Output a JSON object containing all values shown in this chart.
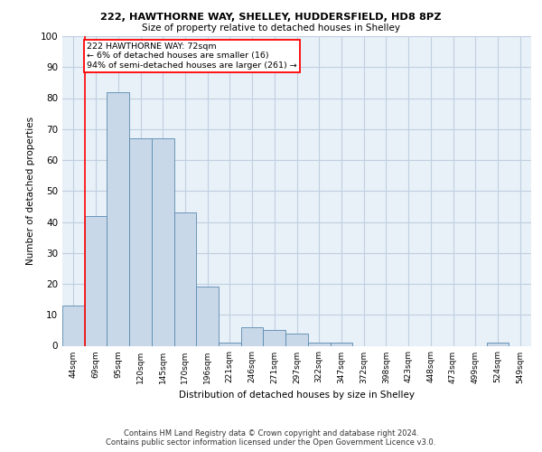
{
  "title1": "222, HAWTHORNE WAY, SHELLEY, HUDDERSFIELD, HD8 8PZ",
  "title2": "Size of property relative to detached houses in Shelley",
  "xlabel": "Distribution of detached houses by size in Shelley",
  "ylabel": "Number of detached properties",
  "bin_labels": [
    "44sqm",
    "69sqm",
    "95sqm",
    "120sqm",
    "145sqm",
    "170sqm",
    "196sqm",
    "221sqm",
    "246sqm",
    "271sqm",
    "297sqm",
    "322sqm",
    "347sqm",
    "372sqm",
    "398sqm",
    "423sqm",
    "448sqm",
    "473sqm",
    "499sqm",
    "524sqm",
    "549sqm"
  ],
  "bar_values": [
    13,
    42,
    82,
    67,
    67,
    43,
    19,
    1,
    6,
    5,
    4,
    1,
    1,
    0,
    0,
    0,
    0,
    0,
    0,
    1,
    0
  ],
  "bar_color": "#c8d8e8",
  "bar_edge_color": "#5a8ab0",
  "vline_bin_index": 1,
  "annotation_text": "222 HAWTHORNE WAY: 72sqm\n← 6% of detached houses are smaller (16)\n94% of semi-detached houses are larger (261) →",
  "annotation_box_color": "white",
  "annotation_box_edge": "red",
  "vline_color": "red",
  "ylim": [
    0,
    100
  ],
  "yticks": [
    0,
    10,
    20,
    30,
    40,
    50,
    60,
    70,
    80,
    90,
    100
  ],
  "grid_color": "#c0cfe0",
  "bg_color": "#e8f0f8",
  "footer": "Contains HM Land Registry data © Crown copyright and database right 2024.\nContains public sector information licensed under the Open Government Licence v3.0."
}
